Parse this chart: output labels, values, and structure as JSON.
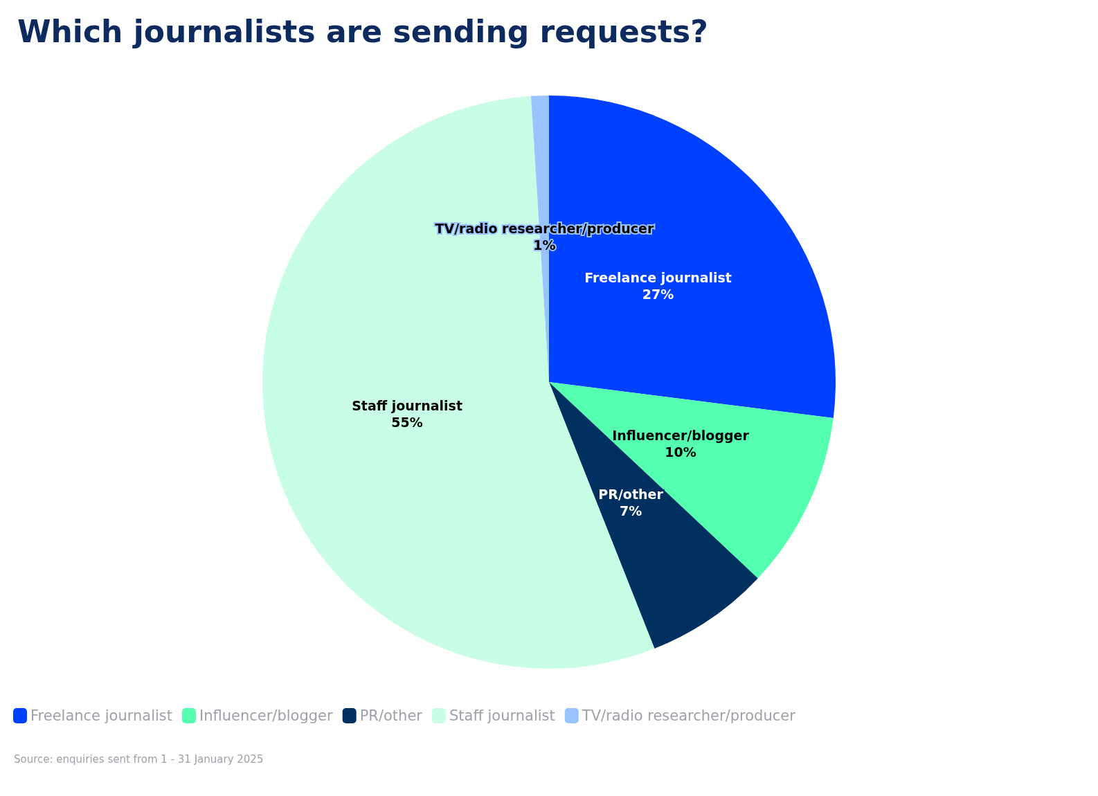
{
  "chart_data": {
    "type": "pie",
    "title": "Which journalists are sending requests?",
    "categories": [
      "Freelance journalist",
      "Influencer/blogger",
      "PR/other",
      "Staff journalist",
      "TV/radio researcher/producer"
    ],
    "values": [
      27,
      10,
      7,
      55,
      1
    ],
    "colors": [
      "#0040ff",
      "#55ffb0",
      "#003060",
      "#c8fde6",
      "#99c4ff"
    ],
    "value_labels": [
      "27%",
      "10%",
      "7%",
      "55%",
      "1%"
    ],
    "legend": "bottom left",
    "annotations": [
      "Source: enquiries sent from 1 - 31 January 2025"
    ]
  }
}
